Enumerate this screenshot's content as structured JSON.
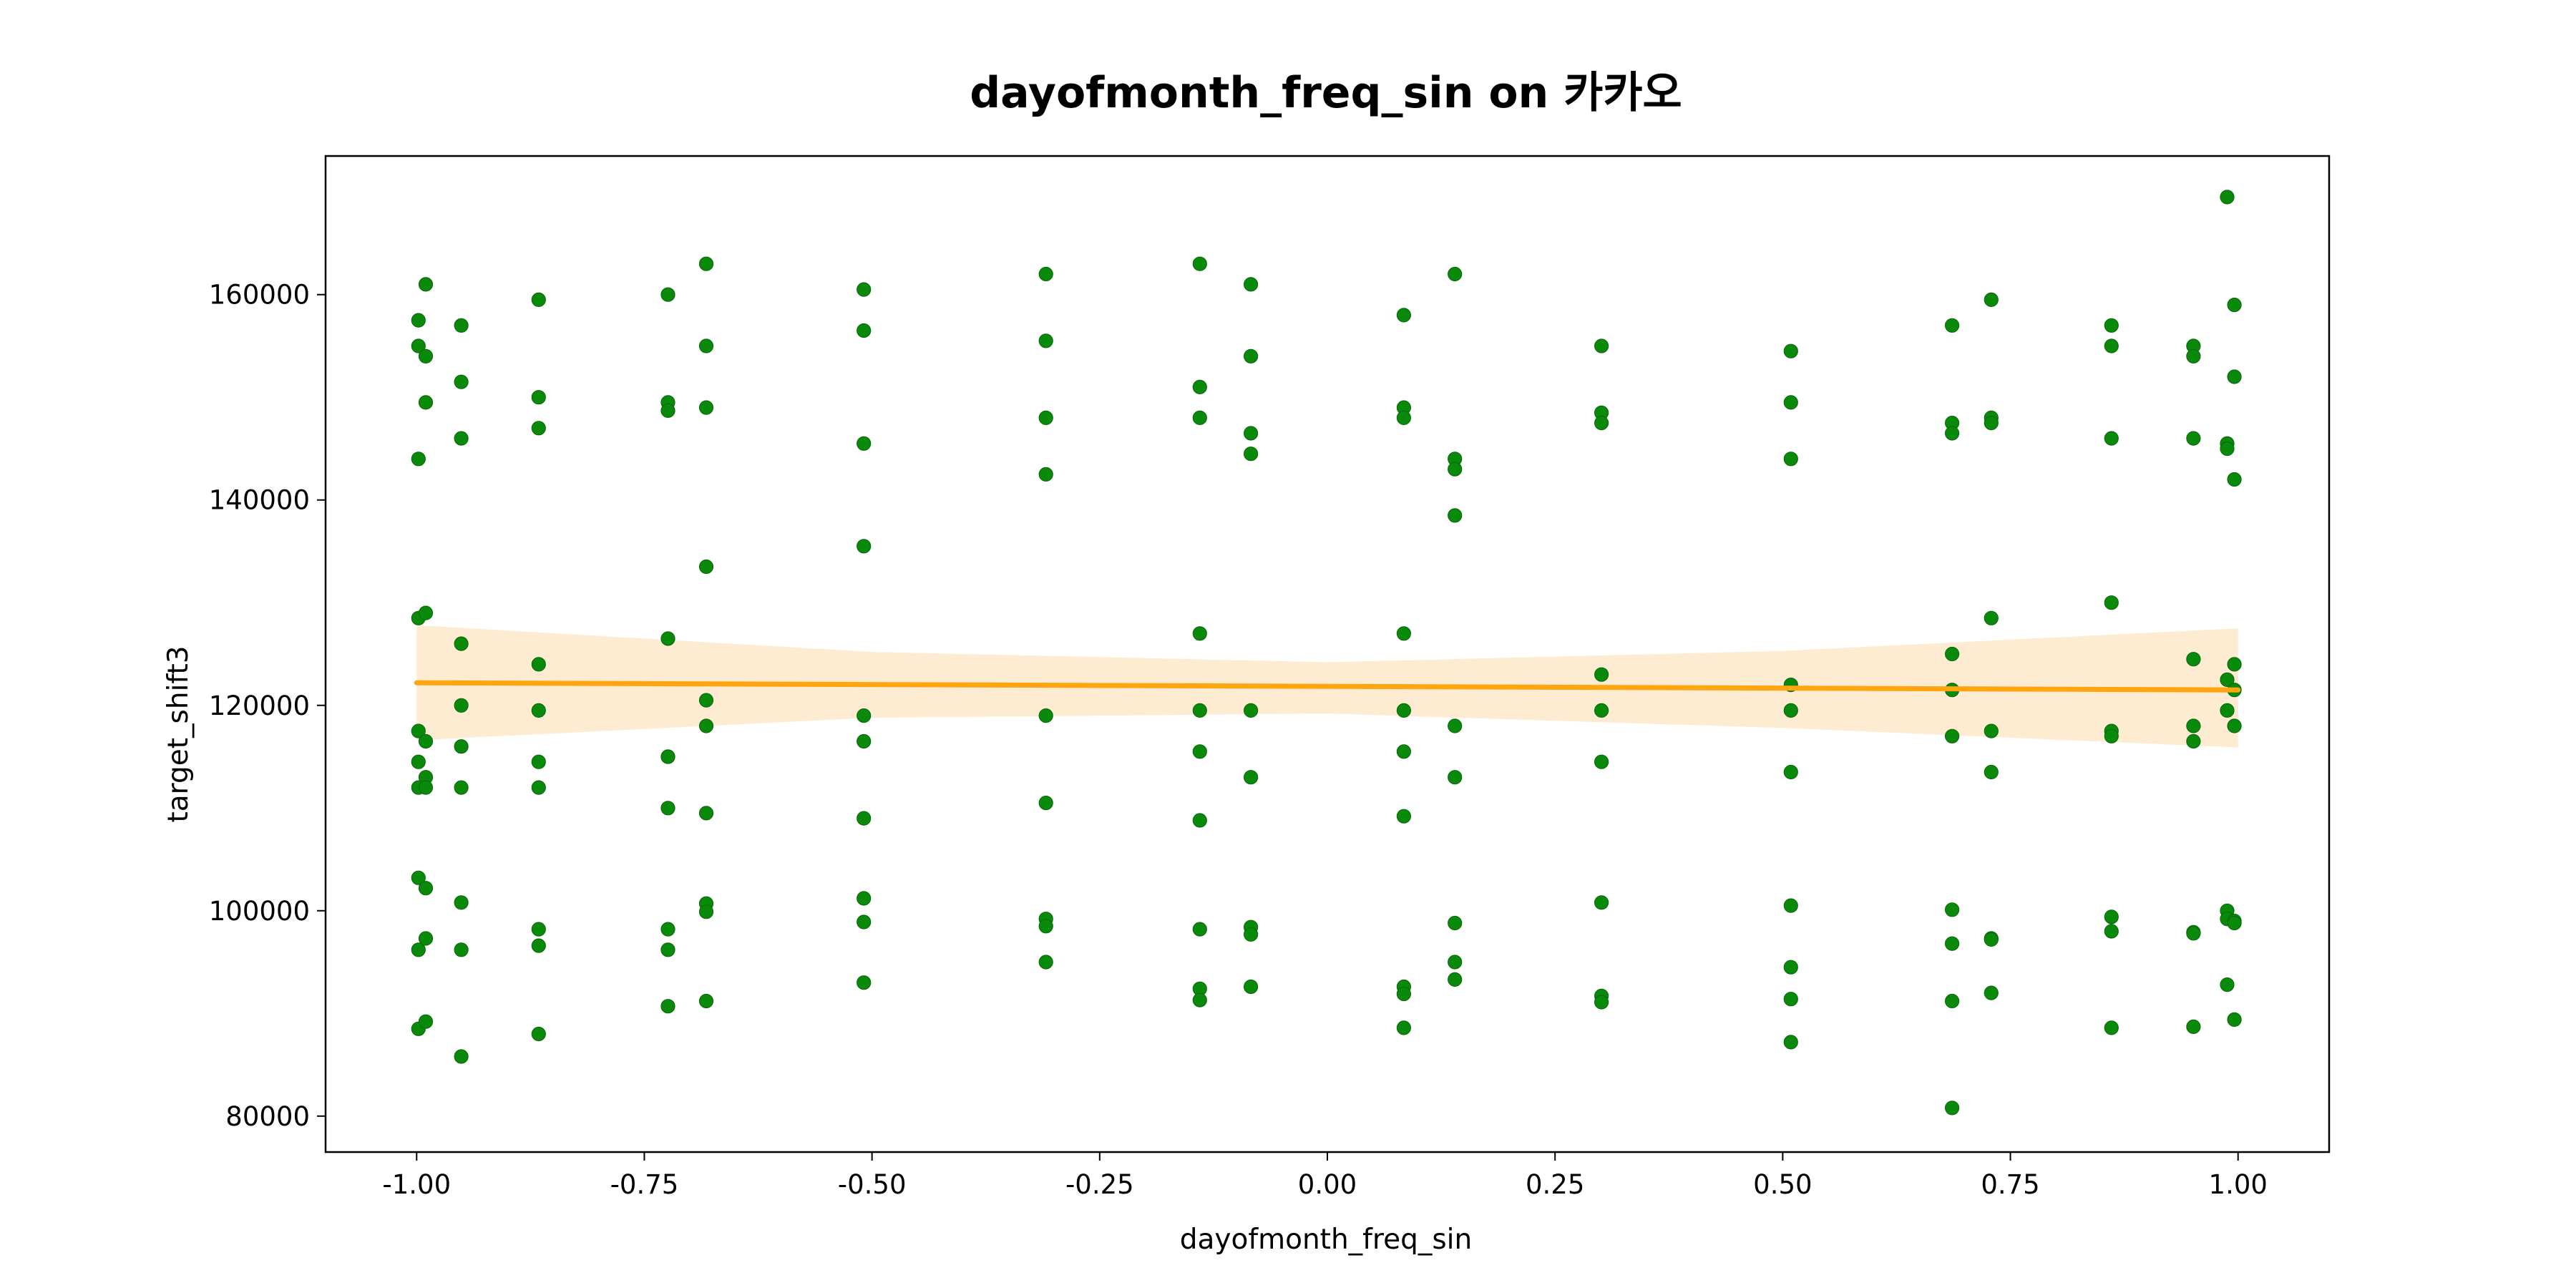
{
  "chart_data": {
    "type": "scatter",
    "title": "dayofmonth_freq_sin on 카카오",
    "xlabel": "dayofmonth_freq_sin",
    "ylabel": "target_shift3",
    "xlim": [
      -1.1,
      1.1
    ],
    "ylim": [
      76500,
      173500
    ],
    "x_ticks": [
      -1.0,
      -0.75,
      -0.5,
      -0.25,
      0.0,
      0.25,
      0.5,
      0.75,
      1.0
    ],
    "x_tick_labels": [
      "-1.00",
      "-0.75",
      "-0.50",
      "-0.25",
      "0.00",
      "0.25",
      "0.50",
      "0.75",
      "1.00"
    ],
    "y_ticks": [
      80000,
      100000,
      120000,
      140000,
      160000
    ],
    "y_tick_labels": [
      "80000",
      "100000",
      "120000",
      "140000",
      "160000"
    ],
    "grid": false,
    "point_color": "#0a8a0a",
    "line_color": "#ffa50f",
    "band_color": "#fdebd2",
    "series": [
      {
        "type": "scatter",
        "points": [
          [
            -0.998,
            157500
          ],
          [
            -0.998,
            155000
          ],
          [
            -0.998,
            144000
          ],
          [
            -0.998,
            128500
          ],
          [
            -0.998,
            117500
          ],
          [
            -0.998,
            114500
          ],
          [
            -0.998,
            112000
          ],
          [
            -0.998,
            103200
          ],
          [
            -0.998,
            96200
          ],
          [
            -0.998,
            88500
          ],
          [
            -0.99,
            161000
          ],
          [
            -0.99,
            154000
          ],
          [
            -0.99,
            149500
          ],
          [
            -0.99,
            129000
          ],
          [
            -0.99,
            116500
          ],
          [
            -0.99,
            113000
          ],
          [
            -0.99,
            112000
          ],
          [
            -0.99,
            102200
          ],
          [
            -0.99,
            97300
          ],
          [
            -0.99,
            89200
          ],
          [
            -0.951,
            157000
          ],
          [
            -0.951,
            151500
          ],
          [
            -0.951,
            146000
          ],
          [
            -0.951,
            126000
          ],
          [
            -0.951,
            120000
          ],
          [
            -0.951,
            116000
          ],
          [
            -0.951,
            112000
          ],
          [
            -0.951,
            100800
          ],
          [
            -0.951,
            96200
          ],
          [
            -0.951,
            85800
          ],
          [
            -0.866,
            159500
          ],
          [
            -0.866,
            150000
          ],
          [
            -0.866,
            147000
          ],
          [
            -0.866,
            124000
          ],
          [
            -0.866,
            119500
          ],
          [
            -0.866,
            114500
          ],
          [
            -0.866,
            112000
          ],
          [
            -0.866,
            98200
          ],
          [
            -0.866,
            96600
          ],
          [
            -0.866,
            88000
          ],
          [
            -0.724,
            160000
          ],
          [
            -0.724,
            149500
          ],
          [
            -0.724,
            148700
          ],
          [
            -0.724,
            126500
          ],
          [
            -0.724,
            115000
          ],
          [
            -0.724,
            115000
          ],
          [
            -0.724,
            110000
          ],
          [
            -0.724,
            98200
          ],
          [
            -0.724,
            96200
          ],
          [
            -0.724,
            90700
          ],
          [
            -0.682,
            163000
          ],
          [
            -0.682,
            155000
          ],
          [
            -0.682,
            149000
          ],
          [
            -0.682,
            133500
          ],
          [
            -0.682,
            120500
          ],
          [
            -0.682,
            118000
          ],
          [
            -0.682,
            109500
          ],
          [
            -0.682,
            100700
          ],
          [
            -0.682,
            99900
          ],
          [
            -0.682,
            91200
          ],
          [
            -0.509,
            160500
          ],
          [
            -0.509,
            156500
          ],
          [
            -0.509,
            145500
          ],
          [
            -0.509,
            135500
          ],
          [
            -0.509,
            119000
          ],
          [
            -0.509,
            116500
          ],
          [
            -0.509,
            109000
          ],
          [
            -0.509,
            101200
          ],
          [
            -0.509,
            98900
          ],
          [
            -0.509,
            93000
          ],
          [
            -0.309,
            162000
          ],
          [
            -0.309,
            155500
          ],
          [
            -0.309,
            148000
          ],
          [
            -0.309,
            142500
          ],
          [
            -0.309,
            119000
          ],
          [
            -0.309,
            110500
          ],
          [
            -0.309,
            99200
          ],
          [
            -0.309,
            98500
          ],
          [
            -0.309,
            95000
          ],
          [
            -0.14,
            163000
          ],
          [
            -0.14,
            151000
          ],
          [
            -0.14,
            148000
          ],
          [
            -0.14,
            127000
          ],
          [
            -0.14,
            119500
          ],
          [
            -0.14,
            115500
          ],
          [
            -0.14,
            108800
          ],
          [
            -0.14,
            98200
          ],
          [
            -0.14,
            92400
          ],
          [
            -0.14,
            91300
          ],
          [
            -0.084,
            161000
          ],
          [
            -0.084,
            154000
          ],
          [
            -0.084,
            146500
          ],
          [
            -0.084,
            144500
          ],
          [
            -0.084,
            119500
          ],
          [
            -0.084,
            113000
          ],
          [
            -0.084,
            98400
          ],
          [
            -0.084,
            97700
          ],
          [
            -0.084,
            92600
          ],
          [
            0.084,
            158000
          ],
          [
            0.084,
            149000
          ],
          [
            0.084,
            148000
          ],
          [
            0.084,
            127000
          ],
          [
            0.084,
            119500
          ],
          [
            0.084,
            115500
          ],
          [
            0.084,
            109200
          ],
          [
            0.084,
            92600
          ],
          [
            0.084,
            91900
          ],
          [
            0.084,
            88600
          ],
          [
            0.14,
            162000
          ],
          [
            0.14,
            144000
          ],
          [
            0.14,
            143000
          ],
          [
            0.14,
            138500
          ],
          [
            0.14,
            118000
          ],
          [
            0.14,
            113000
          ],
          [
            0.14,
            98800
          ],
          [
            0.14,
            95000
          ],
          [
            0.14,
            93300
          ],
          [
            0.301,
            155000
          ],
          [
            0.301,
            148500
          ],
          [
            0.301,
            147500
          ],
          [
            0.301,
            123000
          ],
          [
            0.301,
            119500
          ],
          [
            0.301,
            114500
          ],
          [
            0.301,
            100800
          ],
          [
            0.301,
            91700
          ],
          [
            0.301,
            91100
          ],
          [
            0.509,
            154500
          ],
          [
            0.509,
            149500
          ],
          [
            0.509,
            144000
          ],
          [
            0.509,
            122000
          ],
          [
            0.509,
            119500
          ],
          [
            0.509,
            113500
          ],
          [
            0.509,
            100500
          ],
          [
            0.509,
            94500
          ],
          [
            0.509,
            91400
          ],
          [
            0.509,
            87200
          ],
          [
            0.686,
            157000
          ],
          [
            0.686,
            147500
          ],
          [
            0.686,
            146500
          ],
          [
            0.686,
            125000
          ],
          [
            0.686,
            121500
          ],
          [
            0.686,
            117000
          ],
          [
            0.686,
            100100
          ],
          [
            0.686,
            96800
          ],
          [
            0.686,
            91200
          ],
          [
            0.686,
            80800
          ],
          [
            0.729,
            159500
          ],
          [
            0.729,
            148000
          ],
          [
            0.729,
            147500
          ],
          [
            0.729,
            128500
          ],
          [
            0.729,
            117500
          ],
          [
            0.729,
            113500
          ],
          [
            0.729,
            97300
          ],
          [
            0.729,
            97200
          ],
          [
            0.729,
            92000
          ],
          [
            0.861,
            157000
          ],
          [
            0.861,
            155000
          ],
          [
            0.861,
            146000
          ],
          [
            0.861,
            130000
          ],
          [
            0.861,
            117500
          ],
          [
            0.861,
            117000
          ],
          [
            0.861,
            99400
          ],
          [
            0.861,
            98000
          ],
          [
            0.861,
            88600
          ],
          [
            0.951,
            155000
          ],
          [
            0.951,
            154000
          ],
          [
            0.951,
            146000
          ],
          [
            0.951,
            124500
          ],
          [
            0.951,
            118000
          ],
          [
            0.951,
            116500
          ],
          [
            0.951,
            97900
          ],
          [
            0.951,
            97800
          ],
          [
            0.951,
            88700
          ],
          [
            0.988,
            169500
          ],
          [
            0.988,
            145500
          ],
          [
            0.988,
            145000
          ],
          [
            0.988,
            122500
          ],
          [
            0.988,
            119500
          ],
          [
            0.988,
            100000
          ],
          [
            0.988,
            99200
          ],
          [
            0.988,
            92800
          ],
          [
            0.996,
            159000
          ],
          [
            0.996,
            152000
          ],
          [
            0.996,
            142000
          ],
          [
            0.996,
            124000
          ],
          [
            0.996,
            121500
          ],
          [
            0.996,
            118000
          ],
          [
            0.996,
            99000
          ],
          [
            0.996,
            98800
          ],
          [
            0.996,
            89400
          ]
        ]
      },
      {
        "type": "line",
        "x": [
          -1.0,
          1.0
        ],
        "y": [
          122200,
          121500
        ]
      },
      {
        "type": "area",
        "x": [
          -1.0,
          -0.5,
          0.0,
          0.5,
          1.0
        ],
        "upper": [
          127800,
          125200,
          124200,
          125300,
          127500
        ],
        "lower": [
          116600,
          118800,
          119200,
          117800,
          115900
        ]
      }
    ]
  }
}
